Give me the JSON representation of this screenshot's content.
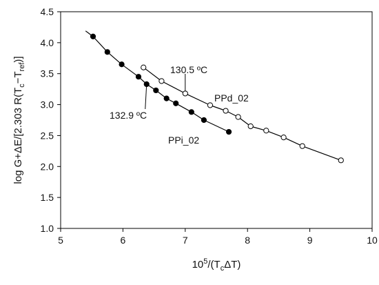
{
  "chart_data": {
    "type": "scatter",
    "xlabel": "10⁵/(TcΔT)",
    "ylabel": "log G+ΔE/[2.303 R(Tc−Tref)]",
    "xlim": [
      5,
      10
    ],
    "ylim": [
      1.0,
      4.5
    ],
    "xticks": [
      "5",
      "6",
      "7",
      "8",
      "9",
      "10"
    ],
    "yticks": [
      "1.0",
      "1.5",
      "2.0",
      "2.5",
      "3.0",
      "3.5",
      "4.0",
      "4.5"
    ],
    "grid": false,
    "series": [
      {
        "name": "PPi_02",
        "marker": "filled-circle",
        "color": "#000000",
        "x": [
          5.52,
          5.75,
          5.98,
          6.25,
          6.38,
          6.53,
          6.7,
          6.85,
          7.1,
          7.3,
          7.7
        ],
        "y": [
          4.1,
          3.85,
          3.65,
          3.45,
          3.33,
          3.23,
          3.1,
          3.02,
          2.88,
          2.75,
          2.56
        ],
        "fit": {
          "x0": 5.4,
          "y0": 4.19,
          "x1": 7.7,
          "y1": 2.56
        }
      },
      {
        "name": "PPd_02",
        "marker": "open-circle",
        "color": "#000000",
        "x": [
          6.33,
          6.62,
          7.0,
          7.4,
          7.65,
          7.85,
          8.05,
          8.3,
          8.58,
          8.88,
          9.5
        ],
        "y": [
          3.6,
          3.38,
          3.18,
          2.99,
          2.9,
          2.8,
          2.65,
          2.58,
          2.47,
          2.33,
          2.1
        ],
        "fit": {
          "x0": 6.3,
          "y0": 3.62,
          "x1": 9.5,
          "y1": 2.1
        }
      }
    ],
    "annotations": [
      {
        "text": "130.5 ºC",
        "x": 7.0,
        "y": 3.18
      },
      {
        "text": "132.9 ºC",
        "x": 6.38,
        "y": 3.33
      },
      {
        "text": "PPd_02",
        "x": 7.4,
        "y": 2.99
      },
      {
        "text": "PPi_02",
        "x": 7.2,
        "y": 2.8
      }
    ]
  }
}
